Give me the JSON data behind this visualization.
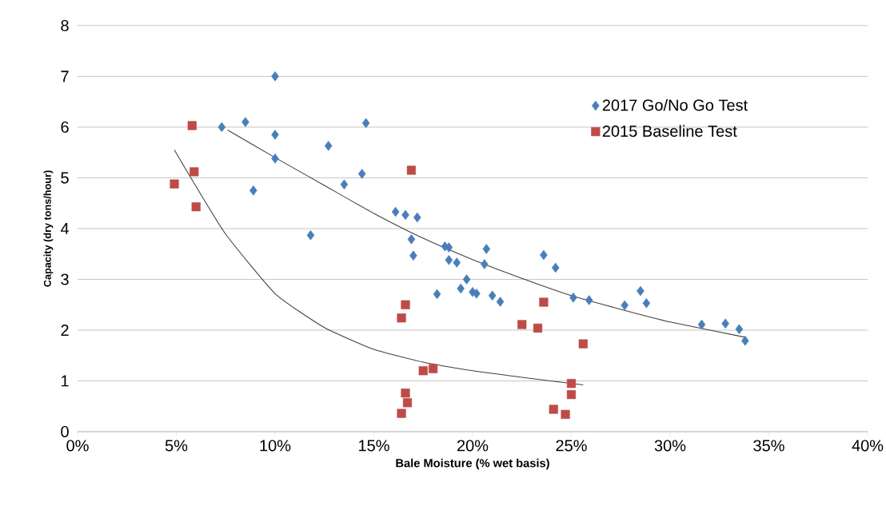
{
  "chart_data": {
    "type": "scatter",
    "xlabel": "Bale Moisture (% wet basis)",
    "ylabel": "Capacity (dry tons/hour)",
    "xlim": [
      0,
      40
    ],
    "ylim": [
      0,
      8
    ],
    "xticks": [
      {
        "value": 0,
        "label": "0%"
      },
      {
        "value": 5,
        "label": "5%"
      },
      {
        "value": 10,
        "label": "10%"
      },
      {
        "value": 15,
        "label": "15%"
      },
      {
        "value": 20,
        "label": "20%"
      },
      {
        "value": 25,
        "label": "25%"
      },
      {
        "value": 30,
        "label": "30%"
      },
      {
        "value": 35,
        "label": "35%"
      },
      {
        "value": 40,
        "label": "40%"
      }
    ],
    "yticks": [
      0,
      1,
      2,
      3,
      4,
      5,
      6,
      7,
      8
    ],
    "grid": "y",
    "legend": "top right",
    "series": [
      {
        "name": "2017 Go/No Go Test",
        "color": "#4a7ebb",
        "marker": "diamond",
        "x": [
          7.3,
          8.5,
          10.0,
          10.0,
          10.0,
          8.9,
          11.8,
          12.7,
          13.5,
          14.4,
          14.6,
          16.1,
          16.6,
          17.2,
          16.9,
          17.0,
          18.6,
          18.8,
          18.8,
          19.2,
          18.2,
          19.7,
          19.4,
          20.0,
          20.2,
          20.7,
          20.6,
          21.0,
          21.4,
          23.6,
          24.2,
          25.1,
          25.9,
          27.7,
          28.5,
          28.8,
          31.6,
          32.8,
          33.5,
          33.8
        ],
        "values": [
          6.0,
          6.1,
          7.0,
          5.85,
          5.38,
          4.75,
          3.87,
          5.63,
          4.87,
          5.08,
          6.08,
          4.33,
          4.27,
          4.22,
          3.79,
          3.47,
          3.65,
          3.63,
          3.38,
          3.33,
          2.71,
          3.0,
          2.82,
          2.75,
          2.72,
          3.6,
          3.3,
          2.68,
          2.56,
          3.48,
          3.23,
          2.64,
          2.59,
          2.49,
          2.77,
          2.53,
          2.11,
          2.13,
          2.02,
          1.79
        ]
      },
      {
        "name": "2015 Baseline Test",
        "color": "#be4b48",
        "marker": "square",
        "x": [
          4.9,
          5.8,
          5.9,
          6.0,
          16.9,
          16.6,
          16.4,
          16.6,
          16.7,
          16.4,
          17.5,
          18.0,
          22.5,
          23.3,
          23.6,
          25.6,
          25.0,
          25.0,
          24.1,
          24.7
        ],
        "values": [
          4.88,
          6.03,
          5.12,
          4.43,
          5.15,
          2.5,
          2.24,
          0.76,
          0.57,
          0.36,
          1.2,
          1.24,
          2.11,
          2.04,
          2.55,
          1.73,
          0.95,
          0.73,
          0.44,
          0.34
        ]
      },
      {
        "type": "line",
        "color": "#404040",
        "marker": "none",
        "x": [
          7.6,
          10,
          12.5,
          15,
          17.5,
          20,
          22.5,
          25,
          27.5,
          30,
          33.8
        ],
        "values": [
          5.94,
          5.4,
          4.85,
          4.3,
          3.81,
          3.39,
          3.02,
          2.68,
          2.41,
          2.16,
          1.86
        ]
      },
      {
        "type": "line",
        "color": "#404040",
        "marker": "none",
        "x": [
          4.9,
          6,
          7.5,
          10,
          12.5,
          15,
          17.5,
          20,
          22.5,
          25.6
        ],
        "values": [
          5.55,
          4.83,
          3.89,
          2.72,
          2.05,
          1.62,
          1.37,
          1.2,
          1.07,
          0.92
        ]
      }
    ]
  }
}
